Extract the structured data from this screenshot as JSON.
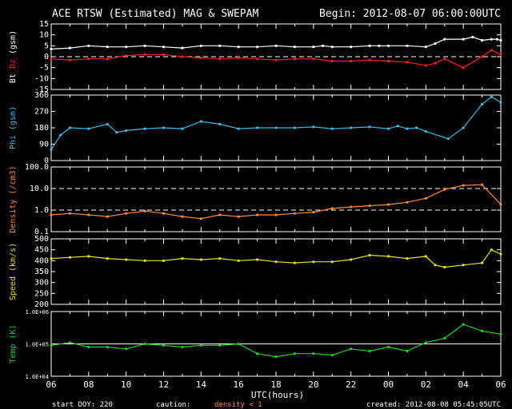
{
  "header": {
    "title": "ACE RTSW (Estimated) MAG & SWEPAM",
    "begin": "Begin: 2012-08-07 06:00:00UTC"
  },
  "footer": {
    "start_doy": "start DOY: 220",
    "caution": "caution:",
    "density_note": "density < 1",
    "created": "created: 2012-08-08 05:45:05UTC"
  },
  "colors": {
    "bt": "#ffffff",
    "bz": "#ff2020",
    "phi": "#40b8e8",
    "density": "#ff8c3a",
    "speed": "#e8e020",
    "temp": "#20d020",
    "axes": "#ffffff",
    "caution": "#ff8c3a"
  },
  "chart_data": {
    "type": "scatter",
    "xlabel": "UTC(hours)",
    "x_ticks": [
      "06",
      "08",
      "10",
      "12",
      "14",
      "16",
      "18",
      "20",
      "22",
      "00",
      "02",
      "04",
      "06"
    ],
    "xlim": [
      0,
      24
    ],
    "panels": [
      {
        "id": "mag",
        "ylabel_parts": [
          "Bt",
          "Bz",
          "(gsm)"
        ],
        "ylim": [
          -15,
          15
        ],
        "y_ticks": [
          "15",
          "10",
          "5",
          "0",
          "-5",
          "-10",
          "-15"
        ],
        "y_tick_values": [
          15,
          10,
          5,
          0,
          -5,
          -10,
          -15
        ],
        "dashed_lines": [
          0
        ],
        "series": [
          {
            "name": "Bt",
            "color": "bt",
            "x": [
              0,
              1,
              2,
              3,
              4,
              5,
              6,
              7,
              8,
              9,
              10,
              11,
              12,
              13,
              14,
              14.5,
              15,
              16,
              17,
              17.5,
              18,
              19,
              20,
              20.5,
              21,
              22,
              22.5,
              23,
              23.5,
              23.8,
              24
            ],
            "y": [
              3.5,
              4,
              5,
              4.5,
              4.5,
              5,
              4.5,
              4,
              5,
              5,
              4.5,
              4.5,
              5,
              4.5,
              4.5,
              5,
              4.5,
              4.5,
              5,
              5,
              5,
              5,
              4.5,
              6,
              8,
              8,
              9,
              7.5,
              8,
              8,
              7.5
            ]
          },
          {
            "name": "Bz",
            "color": "bz",
            "x": [
              0,
              1,
              2,
              3,
              4,
              5,
              6,
              7,
              8,
              9,
              10,
              11,
              12,
              13,
              14,
              15,
              16,
              17,
              18,
              19,
              20,
              20.5,
              21,
              22,
              23,
              23.5,
              24
            ],
            "y": [
              -1,
              -1.5,
              -1,
              -1,
              0.5,
              1,
              1,
              0,
              -0.5,
              -1,
              -0.5,
              -1,
              -1.5,
              -1,
              -1,
              -2,
              -2,
              -1.5,
              -2,
              -2.5,
              -4,
              -3,
              -1,
              -5,
              0,
              3,
              1
            ]
          }
        ]
      },
      {
        "id": "phi",
        "ylabel_parts": [
          "Phi (gsm)"
        ],
        "ylim": [
          0,
          360
        ],
        "y_ticks": [
          "360",
          "270",
          "180",
          "90",
          "0"
        ],
        "y_tick_values": [
          360,
          270,
          180,
          90,
          0
        ],
        "dashed_lines": [],
        "series": [
          {
            "name": "Phi",
            "color": "phi",
            "x": [
              0,
              0.5,
              1,
              2,
              3,
              3.5,
              4,
              5,
              6,
              7,
              8,
              9,
              10,
              11,
              12,
              13,
              14,
              15,
              16,
              17,
              18,
              18.5,
              19,
              19.5,
              20,
              21.2,
              22,
              23,
              23.5,
              24
            ],
            "y": [
              60,
              140,
              180,
              175,
              200,
              155,
              165,
              175,
              180,
              175,
              215,
              200,
              175,
              180,
              180,
              180,
              185,
              175,
              180,
              185,
              175,
              190,
              175,
              180,
              160,
              120,
              180,
              310,
              350,
              320
            ]
          }
        ]
      },
      {
        "id": "density",
        "ylabel_parts": [
          "Density (/cm3)"
        ],
        "log": true,
        "ylim": [
          0.1,
          100
        ],
        "y_ticks": [
          "100.0",
          "10.0",
          "1.0",
          "0.1"
        ],
        "y_tick_values": [
          100,
          10,
          1,
          0.1
        ],
        "dashed_lines": [
          10,
          1
        ],
        "series": [
          {
            "name": "Density",
            "color": "density",
            "x": [
              0,
              1,
              2,
              3,
              4,
              5,
              6,
              7,
              8,
              9,
              10,
              11,
              12,
              13,
              14,
              15,
              16,
              17,
              18,
              19,
              20,
              21,
              22,
              23,
              24
            ],
            "y": [
              0.6,
              0.7,
              0.6,
              0.5,
              0.7,
              0.9,
              0.7,
              0.5,
              0.4,
              0.6,
              0.5,
              0.6,
              0.6,
              0.7,
              0.8,
              1.2,
              1.4,
              1.6,
              1.8,
              2.3,
              3.5,
              9,
              14,
              15,
              1.8
            ]
          }
        ]
      },
      {
        "id": "speed",
        "ylabel_parts": [
          "Speed (km/s)"
        ],
        "ylim": [
          200,
          500
        ],
        "y_ticks": [
          "500",
          "450",
          "400",
          "350",
          "300",
          "250",
          "200"
        ],
        "y_tick_values": [
          500,
          450,
          400,
          350,
          300,
          250,
          200
        ],
        "dashed_lines": [],
        "series": [
          {
            "name": "Speed",
            "color": "speed",
            "x": [
              0,
              1,
              2,
              3,
              4,
              5,
              6,
              7,
              8,
              9,
              10,
              11,
              12,
              13,
              14,
              15,
              16,
              17,
              18,
              19,
              20,
              20.5,
              21,
              22,
              23,
              23.5,
              24
            ],
            "y": [
              410,
              415,
              420,
              410,
              405,
              400,
              400,
              410,
              405,
              410,
              400,
              405,
              395,
              390,
              395,
              395,
              405,
              425,
              420,
              410,
              420,
              380,
              370,
              380,
              390,
              450,
              430
            ]
          }
        ]
      },
      {
        "id": "temp",
        "ylabel_parts": [
          "Temp (K)"
        ],
        "log": true,
        "ylim": [
          10000,
          1000000
        ],
        "y_ticks": [
          "1.0E+06",
          "1.0E+05",
          "1.0E+04"
        ],
        "y_tick_values": [
          1000000,
          100000,
          10000
        ],
        "dashed_lines": [],
        "solid_lines": [
          100000
        ],
        "series": [
          {
            "name": "Temp",
            "color": "temp",
            "x": [
              0,
              1,
              2,
              3,
              4,
              5,
              6,
              7,
              8,
              9,
              10,
              11,
              12,
              13,
              14,
              15,
              16,
              17,
              18,
              19,
              20,
              21,
              22,
              23,
              24
            ],
            "y": [
              90000,
              110000,
              80000,
              80000,
              70000,
              100000,
              90000,
              80000,
              90000,
              90000,
              100000,
              50000,
              40000,
              50000,
              50000,
              45000,
              70000,
              60000,
              80000,
              60000,
              110000,
              150000,
              400000,
              250000,
              200000
            ]
          }
        ]
      }
    ]
  }
}
